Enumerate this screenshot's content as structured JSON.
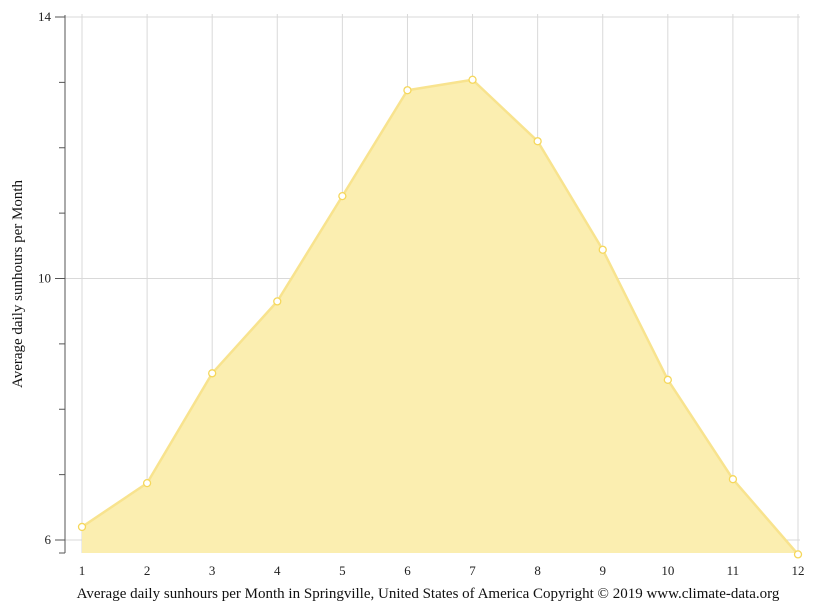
{
  "chart_data": {
    "type": "area",
    "title": "",
    "xlabel": "",
    "ylabel": "Average daily sunhours per Month",
    "caption": "Average daily sunhours per Month in Springville, United States of America Copyright © 2019 www.climate-data.org",
    "x": [
      1,
      2,
      3,
      4,
      5,
      6,
      7,
      8,
      9,
      10,
      11,
      12
    ],
    "x_tick_labels": [
      "1",
      "2",
      "3",
      "4",
      "5",
      "6",
      "7",
      "8",
      "9",
      "10",
      "11",
      "12"
    ],
    "y_tick_labels": [
      "6",
      "10",
      "14"
    ],
    "y_ticks": [
      6,
      10,
      14
    ],
    "xlim": [
      1,
      12
    ],
    "ylim": [
      6,
      14
    ],
    "grid": true,
    "legend": "none",
    "series": [
      {
        "values": [
          6.2,
          6.87,
          8.55,
          9.65,
          11.26,
          12.88,
          13.04,
          12.1,
          10.44,
          8.45,
          6.93,
          5.78
        ]
      }
    ],
    "colors": {
      "fill": "#fbeeb0",
      "line": "#f8e38e",
      "point_stroke": "#f5d75a",
      "point_fill": "#ffffff",
      "grid": "#d9d9d9",
      "axis": "#555555"
    }
  }
}
